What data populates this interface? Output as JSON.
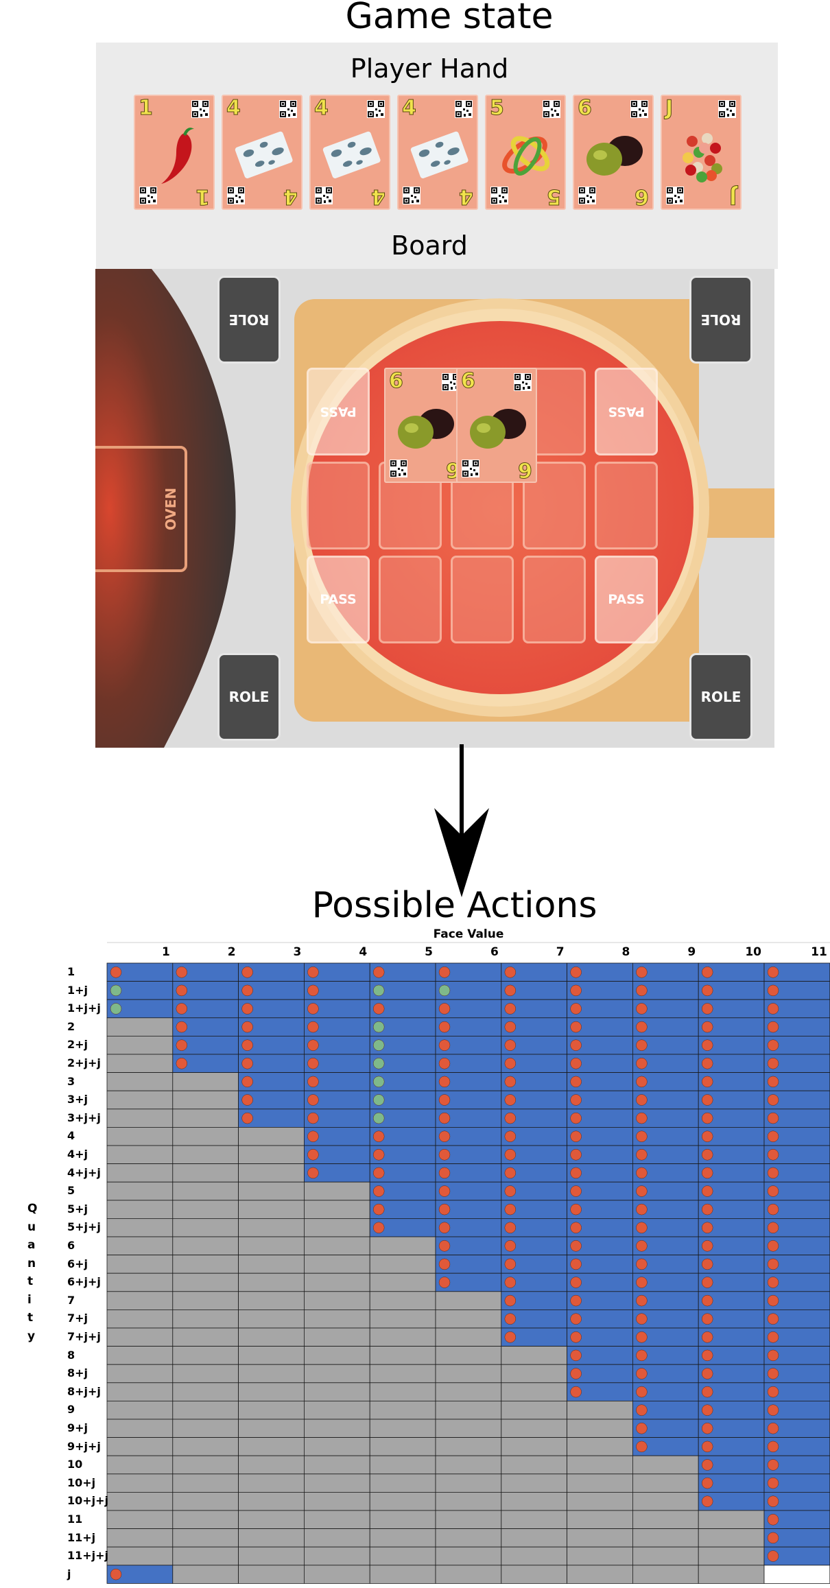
{
  "titles": {
    "game_state": "Game state",
    "player_hand": "Player Hand",
    "board": "Board",
    "possible_actions": "Possible Actions"
  },
  "player_hand": [
    {
      "rank": "1",
      "art": "chili-pepper-icon"
    },
    {
      "rank": "4",
      "art": "blue-cheese-icon"
    },
    {
      "rank": "4",
      "art": "blue-cheese-icon"
    },
    {
      "rank": "4",
      "art": "blue-cheese-icon"
    },
    {
      "rank": "5",
      "art": "bell-pepper-rings-icon"
    },
    {
      "rank": "6",
      "art": "olives-icon"
    },
    {
      "rank": "J",
      "art": "pizza-toppings-icon"
    }
  ],
  "board": {
    "oven_label": "OVEN",
    "role_label": "ROLE",
    "pass_label": "PASS",
    "played_cards": [
      {
        "rank": "6",
        "art": "olives-icon"
      },
      {
        "rank": "6",
        "art": "olives-icon"
      }
    ]
  },
  "table": {
    "x_axis_label": "Face Value",
    "y_axis_label": "Quantity",
    "columns": [
      "1",
      "2",
      "3",
      "4",
      "5",
      "6",
      "7",
      "8",
      "9",
      "10",
      "11"
    ],
    "rows": [
      "1",
      "1+j",
      "1+j+j",
      "2",
      "2+j",
      "2+j+j",
      "3",
      "3+j",
      "3+j+j",
      "4",
      "4+j",
      "4+j+j",
      "5",
      "5+j",
      "5+j+j",
      "6",
      "6+j",
      "6+j+j",
      "7",
      "7+j",
      "7+j+j",
      "8",
      "8+j",
      "8+j+j",
      "9",
      "9+j",
      "9+j+j",
      "10",
      "10+j",
      "10+j+j",
      "11",
      "11+j",
      "11+j+j",
      "j"
    ],
    "colors": {
      "valid": "#4472c4",
      "invalid": "#a6a6a6",
      "dot_red": "#e0593a",
      "dot_green": "#7fb98a"
    },
    "green_cells": [
      [
        1,
        0
      ],
      [
        1,
        5
      ],
      [
        1,
        4
      ],
      [
        3,
        4
      ],
      [
        4,
        4
      ],
      [
        5,
        4
      ],
      [
        6,
        4
      ],
      [
        7,
        4
      ],
      [
        8,
        4
      ],
      [
        2,
        0
      ]
    ],
    "j_row_valid_columns": [
      0
    ]
  }
}
